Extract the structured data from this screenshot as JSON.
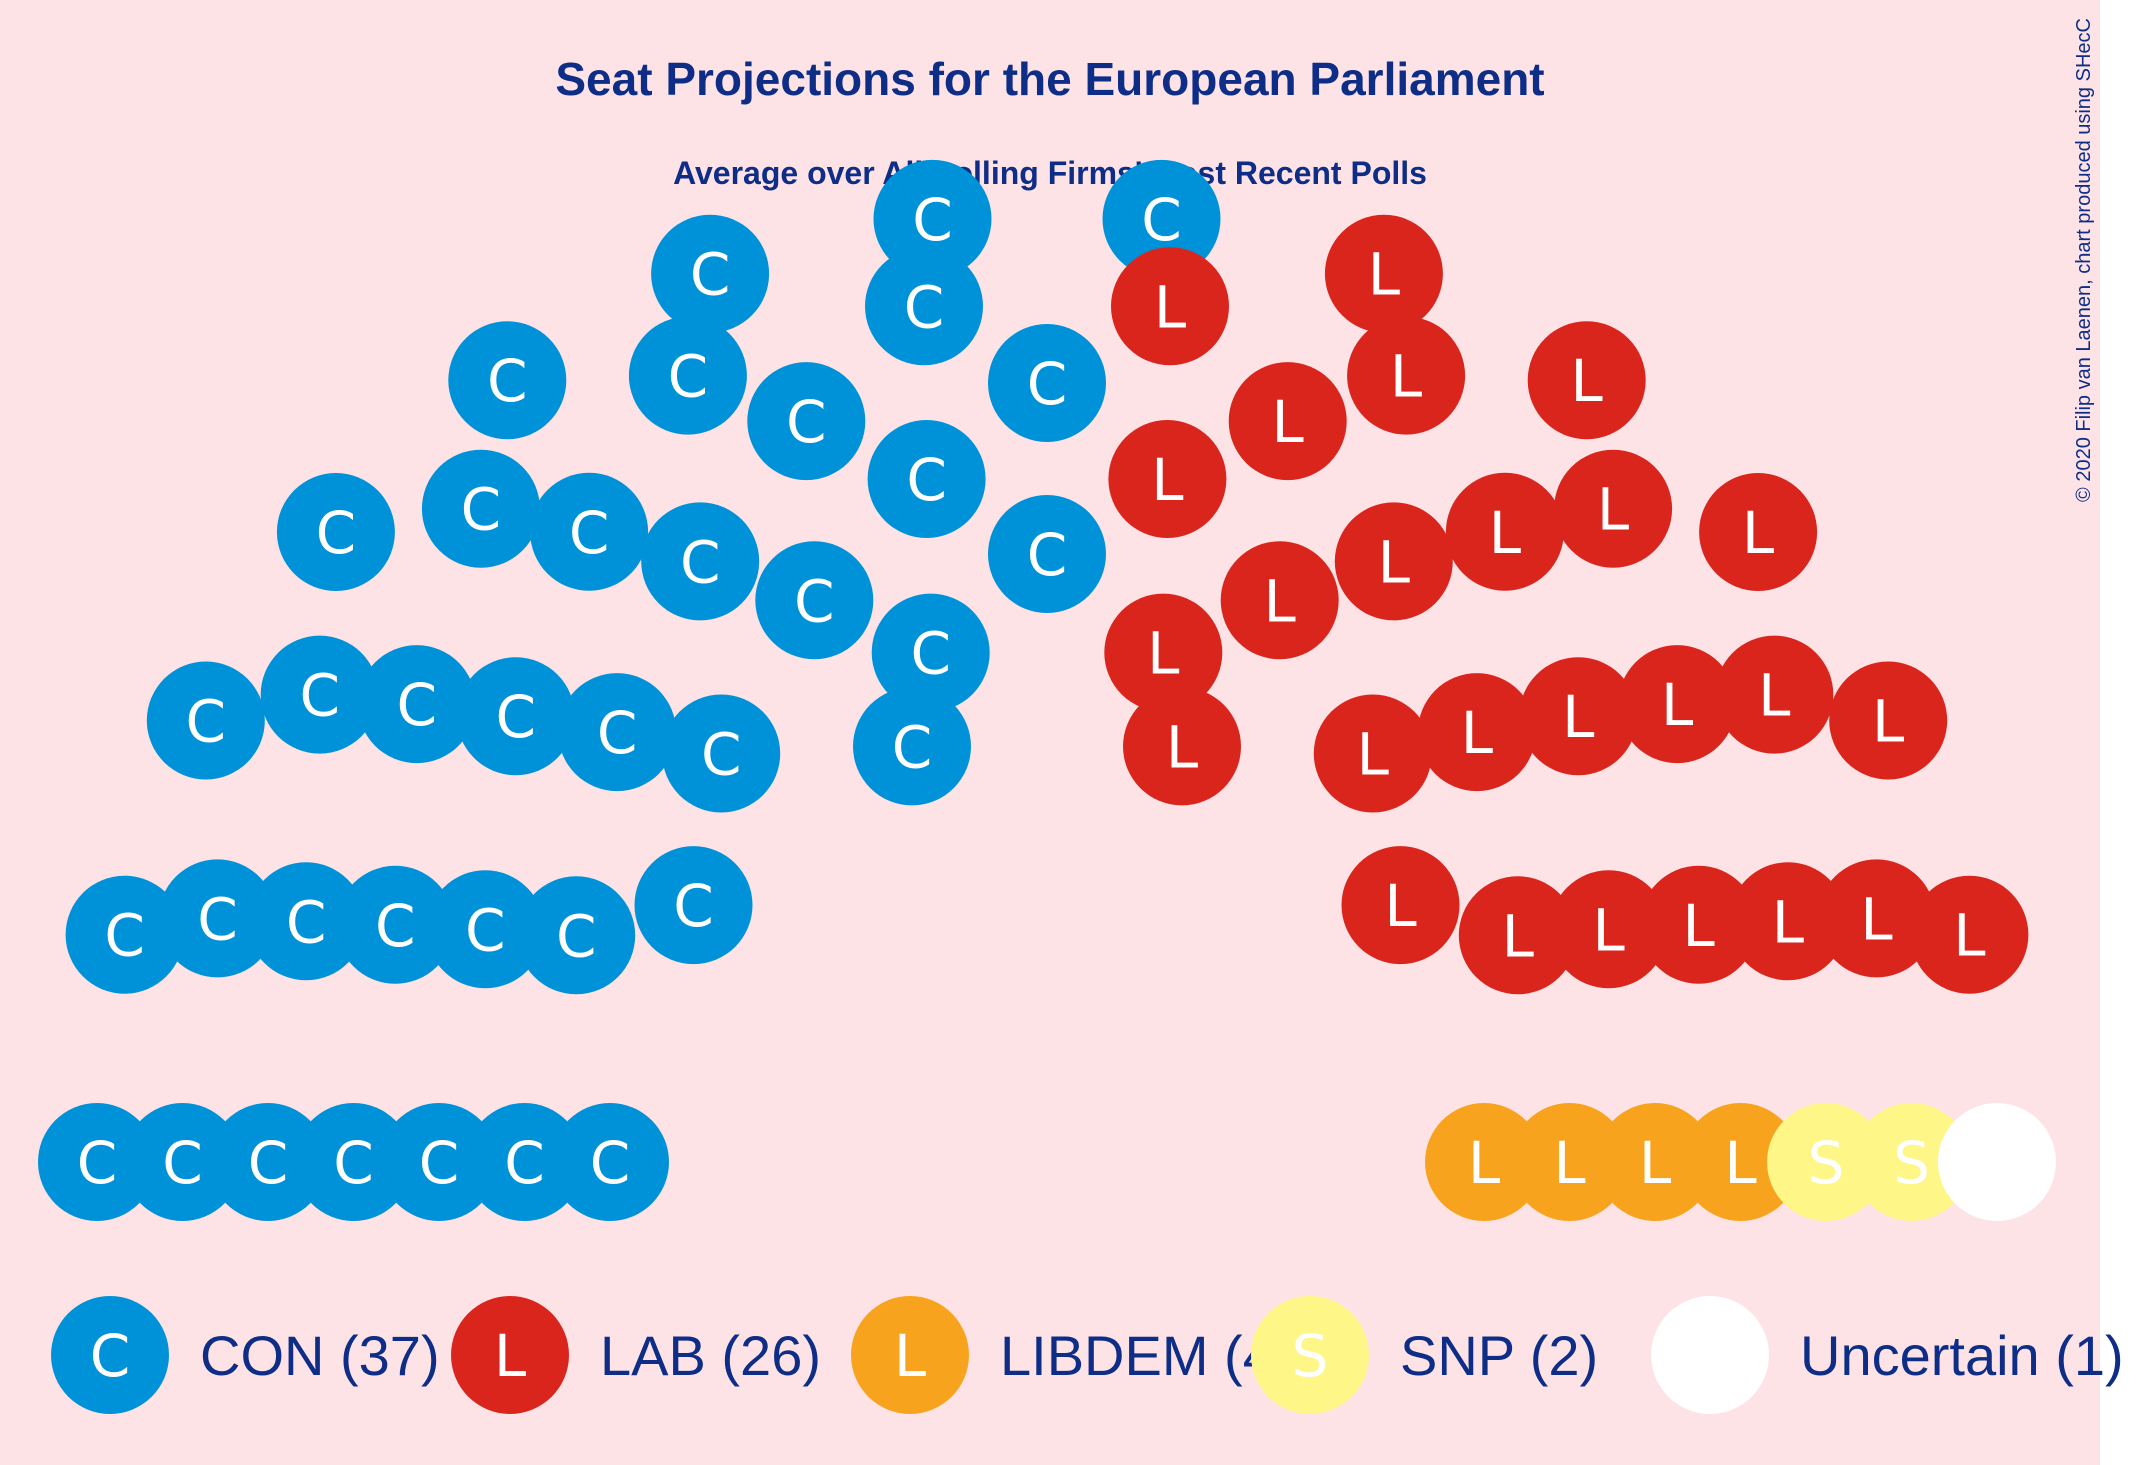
{
  "chart_data": {
    "type": "hemicycle",
    "title": "Seat Projections for the European Parliament",
    "subtitle": "Average over All Polling Firms' Most Recent Polls",
    "copyright": "© 2020 Filip van Laenen, chart produced using SHecC",
    "parties": [
      {
        "name": "CON",
        "letter": "C",
        "seats": 37,
        "color": "#0092d8",
        "legend": "CON (37)"
      },
      {
        "name": "LAB",
        "letter": "L",
        "seats": 26,
        "color": "#da251d",
        "legend": "LAB (26)"
      },
      {
        "name": "LIBDEM",
        "letter": "L",
        "seats": 4,
        "color": "#f8a31d",
        "legend": "LIBDEM (4)"
      },
      {
        "name": "SNP",
        "letter": "S",
        "seats": 2,
        "color": "#fff688",
        "legend": "SNP (2)"
      },
      {
        "name": "Uncertain",
        "letter": "",
        "seats": 1,
        "color": "#ffffff",
        "legend": "Uncertain (1)"
      }
    ],
    "total_seats": 70
  },
  "colors": {
    "background": "#fde3e6",
    "text": "#0d2d87",
    "letter": "#ffffff"
  }
}
